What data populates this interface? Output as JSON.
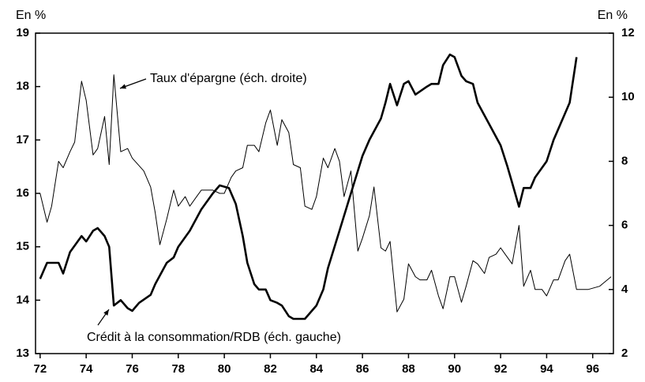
{
  "chart_data": {
    "type": "line",
    "ylabel": "En %",
    "y2label": "En %",
    "xlim": [
      71.8,
      96.9
    ],
    "xticks": [
      72,
      74,
      76,
      78,
      80,
      82,
      84,
      86,
      88,
      90,
      92,
      94,
      96
    ],
    "ylim": [
      13,
      19
    ],
    "yticks": [
      13,
      14,
      15,
      16,
      17,
      18,
      19
    ],
    "y2lim": [
      2,
      12
    ],
    "y2ticks": [
      2,
      4,
      6,
      8,
      10,
      12
    ],
    "grid": false,
    "series": [
      {
        "name": "Crédit à la consommation/RDB (éch. gauche)",
        "color": "#000000",
        "width": 2.6,
        "x": [
          72.0,
          72.3,
          72.8,
          73.0,
          73.3,
          73.8,
          74.0,
          74.3,
          74.5,
          74.8,
          75.0,
          75.2,
          75.5,
          75.8,
          76.0,
          76.3,
          76.8,
          77.0,
          77.5,
          77.8,
          78.0,
          78.5,
          79.0,
          79.5,
          79.8,
          80.2,
          80.5,
          80.8,
          81.0,
          81.3,
          81.5,
          81.8,
          82.0,
          82.3,
          82.5,
          82.8,
          83.0,
          83.5,
          84.0,
          84.3,
          84.5,
          85.0,
          85.5,
          86.0,
          86.3,
          86.8,
          87.0,
          87.2,
          87.5,
          87.8,
          88.0,
          88.3,
          88.8,
          89.0,
          89.3,
          89.5,
          89.8,
          90.0,
          90.3,
          90.5,
          90.8,
          91.0,
          91.5,
          92.0,
          92.3,
          92.5,
          92.8,
          93.0,
          93.3,
          93.5,
          94.0,
          94.3,
          94.8,
          95.0,
          95.3
        ],
        "values": [
          14.4,
          14.7,
          14.7,
          14.5,
          14.9,
          15.2,
          15.1,
          15.3,
          15.35,
          15.2,
          15.0,
          13.9,
          14.0,
          13.85,
          13.8,
          13.95,
          14.1,
          14.3,
          14.7,
          14.8,
          15.0,
          15.3,
          15.7,
          16.0,
          16.15,
          16.1,
          15.8,
          15.2,
          14.7,
          14.3,
          14.2,
          14.2,
          14.0,
          13.95,
          13.9,
          13.7,
          13.65,
          13.65,
          13.9,
          14.2,
          14.6,
          15.3,
          16.0,
          16.7,
          17.0,
          17.4,
          17.7,
          18.05,
          17.65,
          18.05,
          18.1,
          17.85,
          18.0,
          18.05,
          18.05,
          18.4,
          18.6,
          18.55,
          18.2,
          18.1,
          18.05,
          17.7,
          17.3,
          16.9,
          16.5,
          16.2,
          15.75,
          16.1,
          16.1,
          16.3,
          16.6,
          17.0,
          17.5,
          17.7,
          18.55
        ]
      },
      {
        "name": "Taux d'épargne (éch. droite)",
        "color": "#000000",
        "width": 1,
        "axis": "y2",
        "x": [
          72.0,
          72.3,
          72.5,
          72.8,
          73.0,
          73.3,
          73.5,
          73.8,
          74.0,
          74.3,
          74.5,
          74.8,
          75.0,
          75.2,
          75.5,
          75.8,
          76.0,
          76.5,
          76.8,
          77.0,
          77.2,
          77.5,
          77.8,
          78.0,
          78.3,
          78.5,
          78.8,
          79.0,
          79.5,
          79.8,
          80.0,
          80.3,
          80.5,
          80.8,
          81.0,
          81.3,
          81.5,
          81.8,
          82.0,
          82.3,
          82.5,
          82.8,
          83.0,
          83.3,
          83.5,
          83.8,
          84.0,
          84.3,
          84.5,
          84.8,
          85.0,
          85.2,
          85.5,
          85.8,
          86.0,
          86.3,
          86.5,
          86.8,
          87.0,
          87.2,
          87.5,
          87.8,
          88.0,
          88.3,
          88.5,
          88.8,
          89.0,
          89.3,
          89.5,
          89.8,
          90.0,
          90.3,
          90.5,
          90.8,
          91.0,
          91.3,
          91.5,
          91.8,
          92.0,
          92.3,
          92.5,
          92.8,
          93.0,
          93.3,
          93.5,
          93.8,
          94.0,
          94.3,
          94.5,
          94.8,
          95.0,
          95.3,
          95.8,
          96.3,
          96.8
        ],
        "values": [
          7.0,
          6.1,
          6.6,
          8.0,
          7.8,
          8.3,
          8.6,
          10.5,
          9.9,
          8.2,
          8.4,
          9.4,
          7.9,
          10.7,
          8.3,
          8.4,
          8.1,
          7.7,
          7.2,
          6.4,
          5.4,
          6.2,
          7.1,
          6.6,
          6.9,
          6.6,
          6.9,
          7.1,
          7.1,
          7.0,
          7.0,
          7.5,
          7.7,
          7.8,
          8.5,
          8.5,
          8.3,
          9.2,
          9.6,
          8.5,
          9.3,
          8.9,
          7.9,
          7.8,
          6.6,
          6.5,
          6.9,
          8.1,
          7.8,
          8.4,
          8.0,
          6.9,
          7.7,
          5.2,
          5.6,
          6.3,
          7.2,
          5.3,
          5.2,
          5.5,
          3.3,
          3.7,
          4.8,
          4.4,
          4.3,
          4.3,
          4.6,
          3.8,
          3.4,
          4.4,
          4.4,
          3.6,
          4.1,
          4.9,
          4.8,
          4.5,
          5.0,
          5.1,
          5.3,
          5.0,
          4.8,
          6.0,
          4.1,
          4.6,
          4.0,
          4.0,
          3.8,
          4.3,
          4.3,
          4.9,
          5.1,
          4.0,
          4.0,
          4.1,
          4.4
        ]
      }
    ]
  }
}
